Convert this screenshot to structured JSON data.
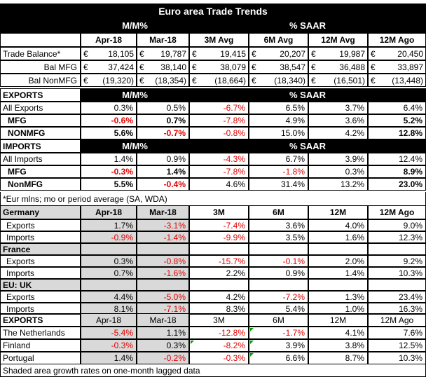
{
  "title": "Euro area Trade Trends",
  "groups": {
    "mm": "M/M%",
    "saar": "% SAAR"
  },
  "cols": {
    "c1": "Apr-18",
    "c2": "Mar-18",
    "c3": "3M Avg",
    "c4": "6M Avg",
    "c5": "12M Avg",
    "c6": "12M Ago"
  },
  "currency": "€",
  "balance": [
    {
      "label": "Trade Balance*",
      "v": [
        "18,105",
        "19,787",
        "19,415",
        "20,207",
        "19,987",
        "20,450"
      ]
    },
    {
      "label": "Bal MFG",
      "v": [
        "37,424",
        "38,140",
        "38,079",
        "38,547",
        "36,488",
        "33,897"
      ]
    },
    {
      "label": "Bal NonMFG",
      "v": [
        "(19,320)",
        "(18,354)",
        "(18,664)",
        "(18,340)",
        "(16,501)",
        "(13,448)"
      ]
    }
  ],
  "exports": {
    "header": "EXPORTS",
    "rows": [
      {
        "label": "All Exports",
        "v": [
          "0.3%",
          "0.5%",
          "-6.7%",
          "6.5%",
          "3.7%",
          "6.4%"
        ]
      },
      {
        "label": "MFG",
        "v": [
          "-0.6%",
          "0.7%",
          "-7.8%",
          "4.9%",
          "3.6%",
          "5.2%"
        ]
      },
      {
        "label": "NONMFG",
        "v": [
          "5.6%",
          "-0.7%",
          "-0.8%",
          "15.0%",
          "4.2%",
          "12.8%"
        ]
      }
    ]
  },
  "imports": {
    "header": "IMPORTS",
    "rows": [
      {
        "label": "All Imports",
        "v": [
          "1.4%",
          "0.9%",
          "-4.3%",
          "6.7%",
          "3.9%",
          "12.4%"
        ]
      },
      {
        "label": "MFG",
        "v": [
          "-0.3%",
          "1.4%",
          "-7.8%",
          "-1.8%",
          "0.3%",
          "8.9%"
        ]
      },
      {
        "label": "NonMFG",
        "v": [
          "5.5%",
          "-0.4%",
          "4.6%",
          "31.4%",
          "13.2%",
          "23.0%"
        ]
      }
    ]
  },
  "note": "*Eur mlns; mo or period average (SA, WDA)",
  "country_cols": {
    "c1": "Apr-18",
    "c2": "Mar-18",
    "c3": "3M",
    "c4": "6M",
    "c5": "12M",
    "c6": "12M Ago"
  },
  "germany": {
    "name": "Germany",
    "rows": [
      {
        "label": "Exports",
        "v": [
          "1.7%",
          "-3.1%",
          "-7.4%",
          "3.6%",
          "4.0%",
          "9.0%"
        ]
      },
      {
        "label": "Imports",
        "v": [
          "-0.9%",
          "-1.4%",
          "-9.9%",
          "3.5%",
          "1.6%",
          "12.3%"
        ]
      }
    ]
  },
  "france": {
    "name": "France",
    "rows": [
      {
        "label": "Exports",
        "v": [
          "0.3%",
          "-0.8%",
          "-15.7%",
          "-0.1%",
          "2.0%",
          "9.2%"
        ]
      },
      {
        "label": "Imports",
        "v": [
          "0.7%",
          "-1.6%",
          "2.2%",
          "0.9%",
          "1.4%",
          "10.3%"
        ]
      }
    ]
  },
  "uk": {
    "name": "EU: UK",
    "rows": [
      {
        "label": "Exports",
        "v": [
          "4.4%",
          "-5.0%",
          "4.2%",
          "-7.2%",
          "1.3%",
          "23.4%"
        ]
      },
      {
        "label": "Imports",
        "v": [
          "8.1%",
          "-7.1%",
          "8.3%",
          "5.4%",
          "1.0%",
          "16.3%"
        ]
      }
    ]
  },
  "exports2": {
    "header": "EXPORTS",
    "cols": [
      "Apr-18",
      "Mar-18",
      "3M",
      "6M",
      "12M",
      "12M Ago"
    ],
    "rows": [
      {
        "label": "The Netherlands",
        "v": [
          "-5.4%",
          "1.1%",
          "-12.8%",
          "-1.7%",
          "4.1%",
          "7.6%"
        ]
      },
      {
        "label": "Finland",
        "v": [
          "-0.3%",
          "0.3%",
          "-8.2%",
          "3.9%",
          "3.8%",
          "12.5%"
        ]
      },
      {
        "label": "Portugal",
        "v": [
          "1.4%",
          "-0.2%",
          "-0.3%",
          "6.6%",
          "8.7%",
          "10.3%"
        ]
      }
    ]
  },
  "footer": "Shaded area growth rates on one-month lagged data"
}
